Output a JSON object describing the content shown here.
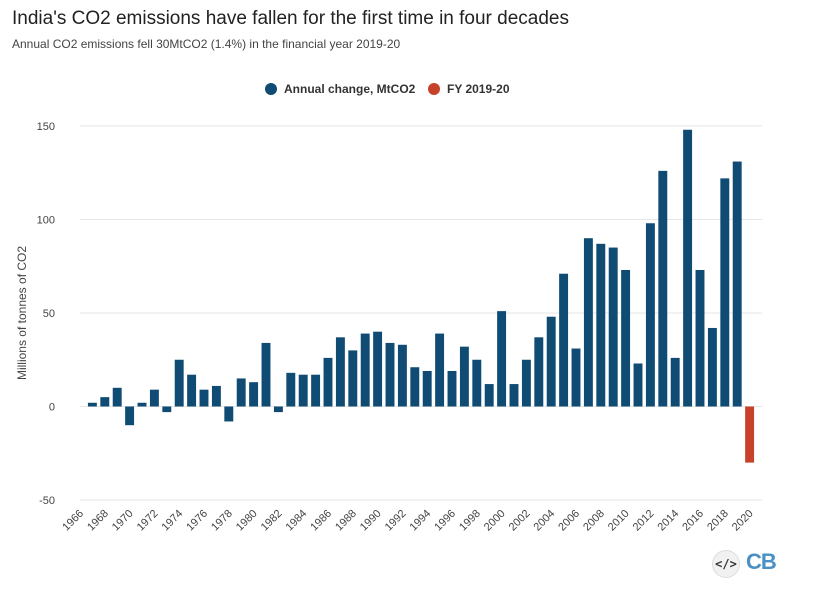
{
  "header": {
    "title": "India's CO2 emissions have fallen for the first time in four decades",
    "subtitle": "Annual CO2 emissions fell 30MtCO2 (1.4%) in the financial year 2019-20"
  },
  "footer": {
    "embed_icon_glyph": "</>",
    "logo_text": "CB"
  },
  "colors": {
    "series_annual": "#0f4b73",
    "series_fy": "#c8412b",
    "grid": "#e6e6e6",
    "axis_text": "#444444"
  },
  "chart_data": {
    "type": "bar",
    "title": "India's CO2 emissions have fallen for the first time in four decades",
    "subtitle": "Annual CO2 emissions fell 30MtCO2 (1.4%) in the financial year 2019-20",
    "xlabel": "",
    "ylabel": "Millions of tonnes of CO2",
    "ylim": [
      -50,
      150
    ],
    "yticks": [
      -50,
      0,
      50,
      100,
      150
    ],
    "grid": true,
    "legend_position": "top-center",
    "categories": [
      1967,
      1968,
      1969,
      1970,
      1971,
      1972,
      1973,
      1974,
      1975,
      1976,
      1977,
      1978,
      1979,
      1980,
      1981,
      1982,
      1983,
      1984,
      1985,
      1986,
      1987,
      1988,
      1989,
      1990,
      1991,
      1992,
      1993,
      1994,
      1995,
      1996,
      1997,
      1998,
      1999,
      2000,
      2001,
      2002,
      2003,
      2004,
      2005,
      2006,
      2007,
      2008,
      2009,
      2010,
      2011,
      2012,
      2013,
      2014,
      2015,
      2016,
      2017,
      2018,
      2019,
      2020
    ],
    "x_tick_labels": [
      "1966",
      "1968",
      "1970",
      "1972",
      "1974",
      "1976",
      "1978",
      "1980",
      "1982",
      "1984",
      "1986",
      "1988",
      "1990",
      "1992",
      "1994",
      "1996",
      "1998",
      "2000",
      "2002",
      "2004",
      "2006",
      "2008",
      "2010",
      "2012",
      "2014",
      "2016",
      "2018",
      "2020"
    ],
    "series": [
      {
        "name": "Annual change, MtCO2",
        "color": "#0f4b73",
        "values": [
          2,
          5,
          10,
          -10,
          2,
          9,
          -3,
          25,
          17,
          9,
          11,
          -8,
          15,
          13,
          34,
          -3,
          18,
          17,
          17,
          26,
          37,
          30,
          39,
          40,
          34,
          33,
          21,
          19,
          39,
          19,
          32,
          25,
          12,
          51,
          12,
          25,
          37,
          48,
          71,
          31,
          90,
          87,
          85,
          73,
          23,
          98,
          126,
          26,
          148,
          73,
          42,
          122,
          131,
          null
        ]
      },
      {
        "name": "FY 2019-20",
        "color": "#c8412b",
        "values": [
          null,
          null,
          null,
          null,
          null,
          null,
          null,
          null,
          null,
          null,
          null,
          null,
          null,
          null,
          null,
          null,
          null,
          null,
          null,
          null,
          null,
          null,
          null,
          null,
          null,
          null,
          null,
          null,
          null,
          null,
          null,
          null,
          null,
          null,
          null,
          null,
          null,
          null,
          null,
          null,
          null,
          null,
          null,
          null,
          null,
          null,
          null,
          null,
          null,
          null,
          null,
          null,
          null,
          -30
        ]
      }
    ]
  }
}
